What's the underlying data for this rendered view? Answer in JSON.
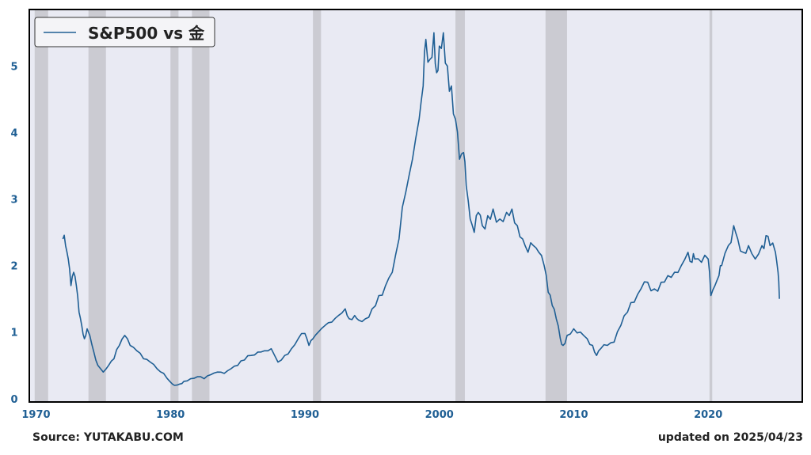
{
  "chart_data": {
    "type": "line",
    "series": [
      {
        "name": "S&P500 vs 金",
        "color": "#1f5f94",
        "points": [
          [
            1972.0,
            2.4
          ],
          [
            1972.2,
            2.3
          ],
          [
            1972.4,
            2.1
          ],
          [
            1972.6,
            1.7
          ],
          [
            1972.8,
            1.9
          ],
          [
            1973.0,
            1.7
          ],
          [
            1973.2,
            1.3
          ],
          [
            1973.4,
            1.1
          ],
          [
            1973.6,
            0.9
          ],
          [
            1973.8,
            1.05
          ],
          [
            1974.0,
            0.95
          ],
          [
            1974.3,
            0.7
          ],
          [
            1974.6,
            0.5
          ],
          [
            1975.0,
            0.4
          ],
          [
            1975.4,
            0.5
          ],
          [
            1975.8,
            0.6
          ],
          [
            1976.2,
            0.8
          ],
          [
            1976.6,
            0.95
          ],
          [
            1977.0,
            0.8
          ],
          [
            1977.5,
            0.72
          ],
          [
            1978.0,
            0.6
          ],
          [
            1978.5,
            0.55
          ],
          [
            1979.0,
            0.45
          ],
          [
            1979.5,
            0.38
          ],
          [
            1980.0,
            0.25
          ],
          [
            1980.3,
            0.2
          ],
          [
            1980.7,
            0.22
          ],
          [
            1981.0,
            0.26
          ],
          [
            1981.5,
            0.3
          ],
          [
            1982.0,
            0.33
          ],
          [
            1982.5,
            0.3
          ],
          [
            1983.0,
            0.36
          ],
          [
            1983.5,
            0.4
          ],
          [
            1984.0,
            0.38
          ],
          [
            1984.5,
            0.45
          ],
          [
            1985.0,
            0.5
          ],
          [
            1985.5,
            0.58
          ],
          [
            1986.0,
            0.65
          ],
          [
            1986.5,
            0.7
          ],
          [
            1987.0,
            0.72
          ],
          [
            1987.5,
            0.75
          ],
          [
            1988.0,
            0.55
          ],
          [
            1988.5,
            0.65
          ],
          [
            1989.0,
            0.75
          ],
          [
            1989.5,
            0.9
          ],
          [
            1990.0,
            0.98
          ],
          [
            1990.3,
            0.8
          ],
          [
            1990.6,
            0.9
          ],
          [
            1991.0,
            1.0
          ],
          [
            1991.5,
            1.1
          ],
          [
            1992.0,
            1.15
          ],
          [
            1992.5,
            1.25
          ],
          [
            1993.0,
            1.35
          ],
          [
            1993.3,
            1.2
          ],
          [
            1993.7,
            1.25
          ],
          [
            1994.0,
            1.18
          ],
          [
            1994.5,
            1.2
          ],
          [
            1995.0,
            1.35
          ],
          [
            1995.5,
            1.55
          ],
          [
            1996.0,
            1.7
          ],
          [
            1996.5,
            1.9
          ],
          [
            1997.0,
            2.4
          ],
          [
            1997.5,
            3.1
          ],
          [
            1998.0,
            3.6
          ],
          [
            1998.5,
            4.2
          ],
          [
            1998.8,
            4.7
          ],
          [
            1999.0,
            5.4
          ],
          [
            1999.3,
            5.1
          ],
          [
            1999.6,
            5.5
          ],
          [
            1999.8,
            4.9
          ],
          [
            2000.0,
            5.3
          ],
          [
            2000.3,
            5.5
          ],
          [
            2000.6,
            5.0
          ],
          [
            2000.9,
            4.7
          ],
          [
            2001.2,
            4.2
          ],
          [
            2001.5,
            3.6
          ],
          [
            2001.8,
            3.7
          ],
          [
            2002.0,
            3.2
          ],
          [
            2002.3,
            2.7
          ],
          [
            2002.6,
            2.5
          ],
          [
            2002.9,
            2.8
          ],
          [
            2003.2,
            2.6
          ],
          [
            2003.6,
            2.75
          ],
          [
            2004.0,
            2.85
          ],
          [
            2004.5,
            2.7
          ],
          [
            2005.0,
            2.8
          ],
          [
            2005.4,
            2.85
          ],
          [
            2005.8,
            2.6
          ],
          [
            2006.2,
            2.4
          ],
          [
            2006.6,
            2.2
          ],
          [
            2007.0,
            2.3
          ],
          [
            2007.4,
            2.2
          ],
          [
            2007.8,
            2.0
          ],
          [
            2008.1,
            1.6
          ],
          [
            2008.4,
            1.4
          ],
          [
            2008.7,
            1.2
          ],
          [
            2009.0,
            0.9
          ],
          [
            2009.2,
            0.8
          ],
          [
            2009.5,
            0.95
          ],
          [
            2010.0,
            1.05
          ],
          [
            2010.5,
            1.0
          ],
          [
            2011.0,
            0.9
          ],
          [
            2011.4,
            0.8
          ],
          [
            2011.7,
            0.65
          ],
          [
            2012.0,
            0.75
          ],
          [
            2012.5,
            0.8
          ],
          [
            2013.0,
            0.85
          ],
          [
            2013.5,
            1.1
          ],
          [
            2014.0,
            1.3
          ],
          [
            2014.5,
            1.45
          ],
          [
            2015.0,
            1.65
          ],
          [
            2015.5,
            1.75
          ],
          [
            2016.0,
            1.65
          ],
          [
            2016.5,
            1.75
          ],
          [
            2017.0,
            1.85
          ],
          [
            2017.5,
            1.9
          ],
          [
            2018.0,
            2.0
          ],
          [
            2018.5,
            2.2
          ],
          [
            2018.8,
            2.05
          ],
          [
            2019.0,
            2.1
          ],
          [
            2019.5,
            2.05
          ],
          [
            2020.0,
            2.1
          ],
          [
            2020.2,
            1.55
          ],
          [
            2020.5,
            1.7
          ],
          [
            2020.8,
            1.85
          ],
          [
            2021.0,
            2.0
          ],
          [
            2021.5,
            2.3
          ],
          [
            2021.9,
            2.6
          ],
          [
            2022.2,
            2.4
          ],
          [
            2022.6,
            2.2
          ],
          [
            2023.0,
            2.3
          ],
          [
            2023.5,
            2.1
          ],
          [
            2024.0,
            2.3
          ],
          [
            2024.3,
            2.45
          ],
          [
            2024.6,
            2.3
          ],
          [
            2025.0,
            2.2
          ],
          [
            2025.2,
            1.9
          ],
          [
            2025.3,
            1.5
          ]
        ]
      }
    ],
    "recessions": [
      [
        1969.9,
        1970.9
      ],
      [
        1973.9,
        1975.2
      ],
      [
        1980.0,
        1980.6
      ],
      [
        1981.6,
        1982.9
      ],
      [
        1990.6,
        1991.2
      ],
      [
        2001.2,
        2001.9
      ],
      [
        2007.9,
        2009.5
      ],
      [
        2020.1,
        2020.3
      ]
    ],
    "xlim": [
      1969.5,
      2027.0
    ],
    "ylim": [
      -0.05,
      5.85
    ],
    "x_ticks": [
      1970,
      1980,
      1990,
      2000,
      2010,
      2020
    ],
    "y_ticks": [
      0,
      1,
      2,
      3,
      4,
      5
    ],
    "legend": {
      "label": "S&P500 vs 金",
      "placement": "top-left"
    },
    "grid": false,
    "colors": {
      "plot_bg": "#e9eaf3",
      "recession": "#c5c6cb",
      "line": "#1f5f94",
      "axis_text": "#1f5f94"
    }
  },
  "footer": {
    "source": "Source: YUTAKABU.COM",
    "updated": "updated on 2025/04/23"
  }
}
